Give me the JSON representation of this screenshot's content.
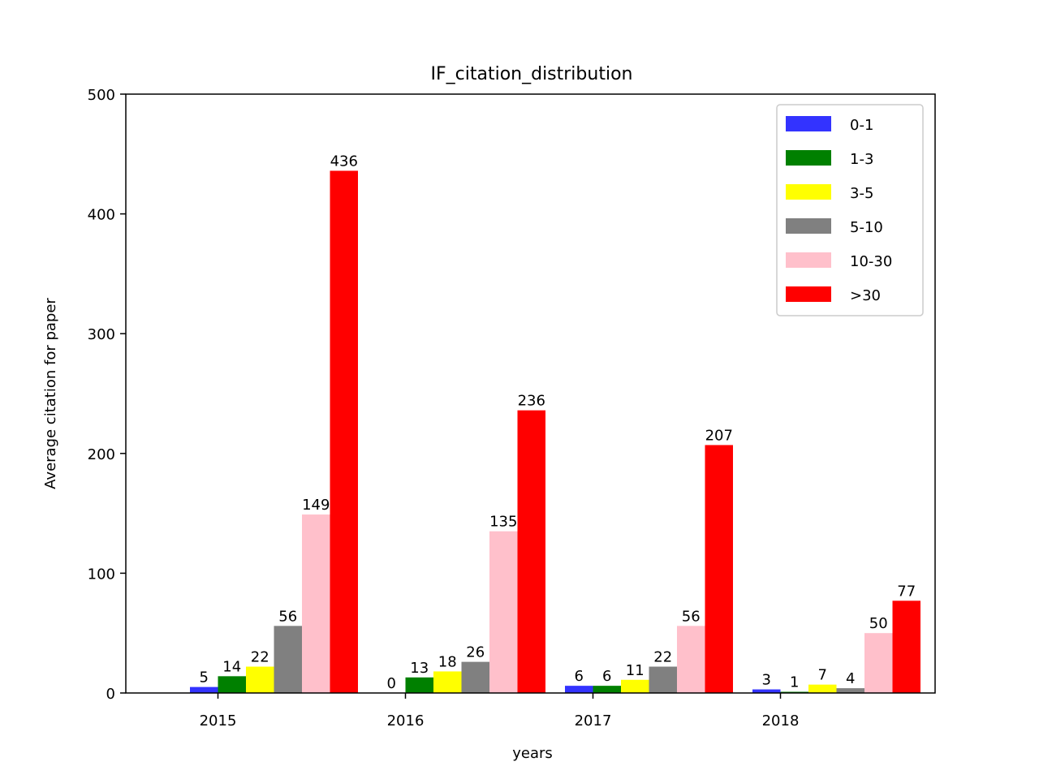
{
  "chart_data": {
    "type": "bar",
    "title": "IF_citation_distribution",
    "xlabel": "years",
    "ylabel": "Average citation for paper",
    "categories": [
      "2015",
      "2016",
      "2017",
      "2018"
    ],
    "ylim": [
      0,
      500
    ],
    "yticks": [
      "0",
      "100",
      "200",
      "300",
      "400",
      "500"
    ],
    "legend_position": "upper-right",
    "series": [
      {
        "name": "0-1",
        "color": "#3333ff",
        "values": [
          5,
          0,
          6,
          3
        ],
        "labels": [
          "5",
          "0",
          "6",
          "3"
        ]
      },
      {
        "name": "1-3",
        "color": "#008000",
        "values": [
          14,
          13,
          6,
          1
        ],
        "labels": [
          "14",
          "13",
          "6",
          "1"
        ]
      },
      {
        "name": "3-5",
        "color": "#ffff00",
        "values": [
          22,
          18,
          11,
          7
        ],
        "labels": [
          "22",
          "18",
          "11",
          "7"
        ]
      },
      {
        "name": "5-10",
        "color": "#808080",
        "values": [
          56,
          26,
          22,
          4
        ],
        "labels": [
          "56",
          "26",
          "22",
          "4"
        ]
      },
      {
        "name": "10-30",
        "color": "#ffc0cb",
        "values": [
          149,
          135,
          56,
          50
        ],
        "labels": [
          "149",
          "135",
          "56",
          "50"
        ]
      },
      {
        "name": ">30",
        "color": "#ff0000",
        "values": [
          436,
          236,
          207,
          77
        ],
        "labels": [
          "436",
          "236",
          "207",
          "77"
        ]
      }
    ]
  }
}
